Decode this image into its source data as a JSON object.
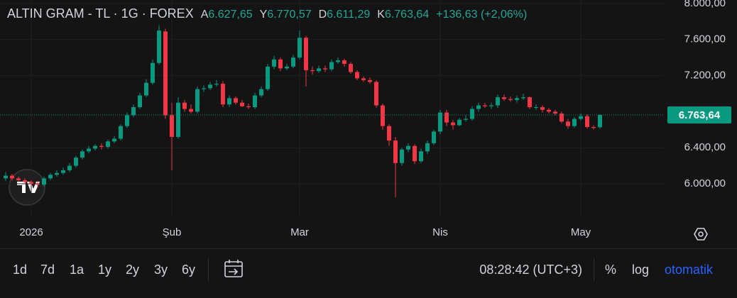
{
  "chart_data": {
    "type": "candlestick",
    "title": "ALTIN GRAM - TL · 1G · FOREX",
    "ohlc_legend": [
      {
        "key": "A",
        "value": "6.627,65"
      },
      {
        "key": "Y",
        "value": "6.770,57"
      },
      {
        "key": "D",
        "value": "6.611,29"
      },
      {
        "key": "K",
        "value": "6.763,64"
      }
    ],
    "change": "+136,63 (+2,06%)",
    "up_color": "#089981",
    "down_color": "#f23645",
    "grid": true,
    "ylim": [
      5638,
      8039
    ],
    "yticks": [
      {
        "value": 6000,
        "label": "6.000,00"
      },
      {
        "value": 6400,
        "label": "6.400,00"
      },
      {
        "value": 7200,
        "label": "7.200,00"
      },
      {
        "value": 7600,
        "label": "7.600,00"
      },
      {
        "value": 8000,
        "label": "8.000,00"
      }
    ],
    "last_price": {
      "value": 6763.64,
      "label": "6.763,64"
    },
    "categories": [
      null,
      null,
      null,
      null,
      "2026",
      null,
      null,
      null,
      null,
      null,
      null,
      null,
      null,
      null,
      null,
      null,
      null,
      null,
      null,
      null,
      null,
      null,
      null,
      null,
      null,
      null,
      "Şub",
      null,
      null,
      null,
      null,
      null,
      null,
      null,
      null,
      null,
      null,
      null,
      null,
      null,
      null,
      null,
      null,
      null,
      null,
      null,
      "Mar",
      null,
      null,
      null,
      null,
      null,
      null,
      null,
      null,
      null,
      null,
      null,
      null,
      null,
      null,
      null,
      null,
      null,
      null,
      null,
      null,
      null,
      "Nis",
      null,
      null,
      null,
      null,
      null,
      null,
      null,
      null,
      null,
      null,
      null,
      null,
      null,
      null,
      null,
      null,
      null,
      null,
      null,
      null,
      null,
      "May",
      null,
      null,
      null
    ],
    "open": [
      6060,
      6090,
      6060,
      6040,
      6020,
      6000,
      5990,
      6060,
      6100,
      6120,
      6150,
      6200,
      6290,
      6360,
      6390,
      6420,
      6410,
      6470,
      6500,
      6640,
      6760,
      6850,
      6980,
      7120,
      7340,
      7690,
      6760,
      6520,
      6900,
      6830,
      6800,
      7050,
      7060,
      7100,
      7110,
      6880,
      6950,
      6900,
      6860,
      6850,
      6980,
      7050,
      7300,
      7380,
      7280,
      7300,
      7400,
      7620,
      7260,
      7250,
      7280,
      7270,
      7350,
      7370,
      7330,
      7240,
      7170,
      7150,
      7130,
      6870,
      6640,
      6480,
      6230,
      6380,
      6420,
      6250,
      6360,
      6450,
      6580,
      6790,
      6680,
      6650,
      6710,
      6720,
      6830,
      6870,
      6860,
      6870,
      6960,
      6940,
      6930,
      6950,
      6960,
      6850,
      6850,
      6820,
      6800,
      6780,
      6690,
      6640,
      6720,
      6750,
      6630,
      6627.65
    ],
    "high": [
      6130,
      6110,
      6080,
      6060,
      6040,
      6030,
      6080,
      6120,
      6150,
      6180,
      6230,
      6310,
      6380,
      6420,
      6440,
      6450,
      6490,
      6530,
      6660,
      6790,
      6880,
      7010,
      7160,
      7380,
      7760,
      7720,
      6900,
      6960,
      6930,
      6880,
      7080,
      7090,
      7130,
      7150,
      7140,
      6980,
      6970,
      6930,
      6890,
      7010,
      7080,
      7330,
      7420,
      7400,
      7330,
      7430,
      7700,
      7640,
      7300,
      7310,
      7310,
      7380,
      7400,
      7390,
      7350,
      7260,
      7190,
      7180,
      7150,
      6890,
      6660,
      6520,
      6400,
      6450,
      6440,
      6390,
      6480,
      6600,
      6820,
      6820,
      6710,
      6730,
      6760,
      6860,
      6900,
      6900,
      6900,
      6990,
      6990,
      6970,
      6980,
      7000,
      6970,
      6880,
      6870,
      6840,
      6820,
      6800,
      6720,
      6740,
      6780,
      6770,
      6650,
      6770.57
    ],
    "low": [
      6030,
      6040,
      6020,
      6000,
      5980,
      5960,
      5970,
      6040,
      6080,
      6100,
      6130,
      6180,
      6270,
      6340,
      6370,
      6380,
      6390,
      6450,
      6480,
      6620,
      6740,
      6830,
      6960,
      7100,
      7320,
      6720,
      6150,
      6500,
      6800,
      6780,
      6780,
      7020,
      7040,
      7080,
      6850,
      6850,
      6880,
      6850,
      6830,
      6830,
      6960,
      7030,
      7270,
      7250,
      7260,
      7280,
      7380,
      7080,
      7210,
      7230,
      7240,
      7250,
      7330,
      7300,
      7220,
      7150,
      7130,
      7110,
      6840,
      6600,
      6420,
      5850,
      6200,
      6350,
      6220,
      6230,
      6330,
      6430,
      6550,
      6640,
      6600,
      6640,
      6690,
      6700,
      6800,
      6840,
      6830,
      6840,
      6920,
      6910,
      6900,
      6930,
      6830,
      6820,
      6790,
      6780,
      6760,
      6670,
      6610,
      6620,
      6700,
      6610,
      6600,
      6611.29
    ],
    "close": [
      6090,
      6060,
      6040,
      6020,
      6000,
      5990,
      6060,
      6100,
      6120,
      6150,
      6200,
      6290,
      6360,
      6390,
      6420,
      6410,
      6470,
      6500,
      6640,
      6760,
      6850,
      6980,
      7120,
      7340,
      7700,
      6760,
      6520,
      6900,
      6830,
      6800,
      7050,
      7060,
      7100,
      7110,
      6880,
      6950,
      6900,
      6860,
      6850,
      6980,
      7050,
      7300,
      7380,
      7280,
      7300,
      7400,
      7620,
      7260,
      7250,
      7280,
      7270,
      7350,
      7370,
      7330,
      7240,
      7170,
      7150,
      7130,
      6870,
      6640,
      6480,
      6230,
      6380,
      6420,
      6250,
      6360,
      6450,
      6580,
      6790,
      6680,
      6650,
      6710,
      6720,
      6830,
      6870,
      6860,
      6870,
      6960,
      6940,
      6930,
      6950,
      6960,
      6850,
      6850,
      6820,
      6800,
      6780,
      6690,
      6640,
      6720,
      6750,
      6630,
      6620,
      6763.64
    ]
  },
  "toolbar": {
    "ranges": [
      "1d",
      "7d",
      "1a",
      "1y",
      "2y",
      "3y",
      "6y"
    ],
    "time": "08:28:42 (UTC+3)",
    "percent": "%",
    "log": "log",
    "auto": "otomatik"
  }
}
